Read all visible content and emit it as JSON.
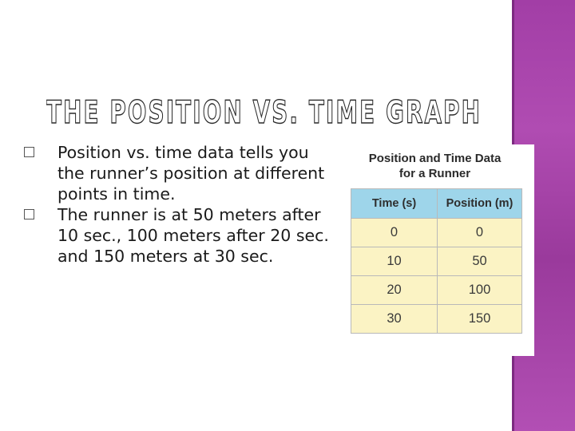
{
  "slide": {
    "title": "THE POSITION VS. TIME GRAPH",
    "bullets": [
      "Position vs. time data tells you the runner’s position at different points in time.",
      "The runner is at 50 meters after 10 sec., 100 meters after 20 sec. and 150 meters at 30 sec."
    ]
  },
  "table": {
    "title_line1": "Position and Time Data",
    "title_line2": "for a Runner",
    "headers": [
      "Time (s)",
      "Position (m)"
    ],
    "rows": [
      [
        "0",
        "0"
      ],
      [
        "10",
        "50"
      ],
      [
        "20",
        "100"
      ],
      [
        "30",
        "150"
      ]
    ]
  },
  "colors": {
    "accent_band": "#a23ea6",
    "table_header": "#9ed5ea",
    "table_body": "#fbf3c4"
  }
}
